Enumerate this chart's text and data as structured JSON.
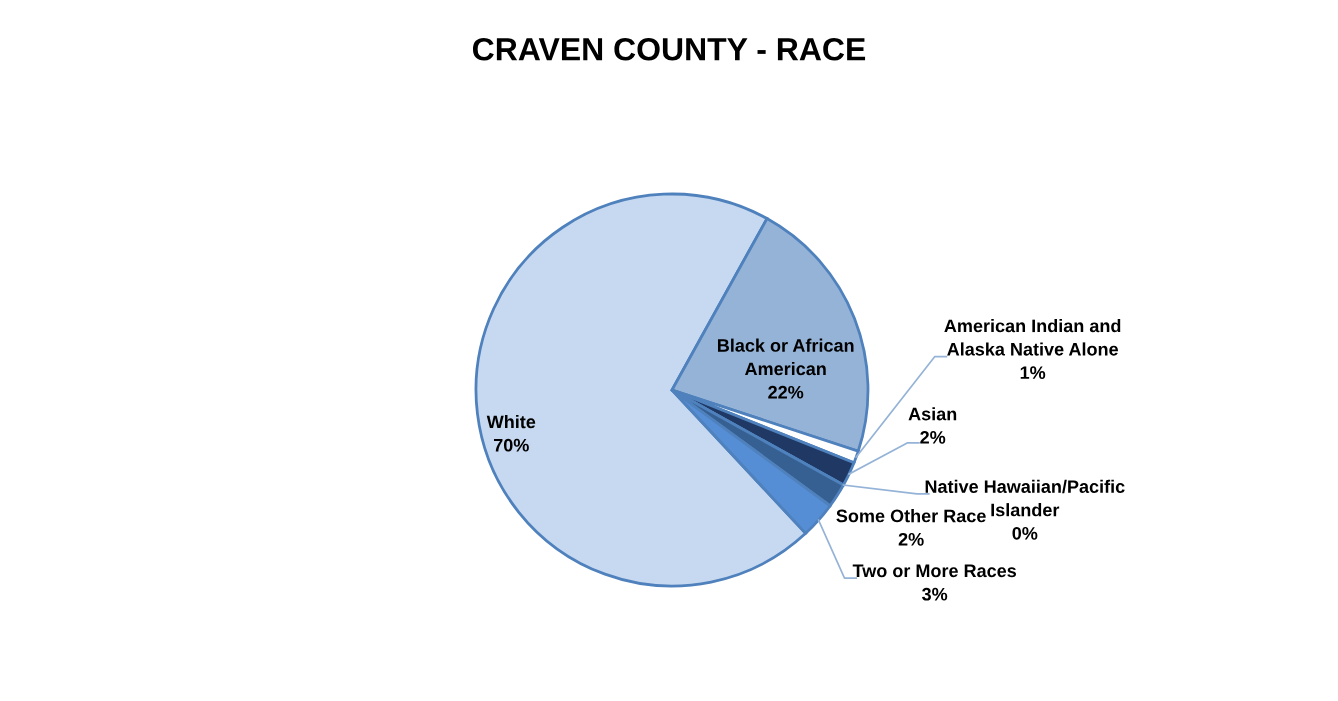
{
  "chart_data": {
    "type": "pie",
    "title": "CRAVEN COUNTY - RACE",
    "categories": [
      "White",
      "Black or African\nAmerican",
      "American Indian and\nAlaska Native Alone",
      "Asian",
      "Native Hawaiian/Pacific\nIslander",
      "Some Other Race",
      "Two or More Races"
    ],
    "values": [
      70,
      22,
      1,
      2,
      0,
      2,
      3
    ],
    "colors": [
      "#c6d9f1",
      "#95b3d7",
      "#ffffff",
      "#1f3864",
      "#254061",
      "#366092",
      "#558ed5"
    ],
    "value_labels": [
      "70%",
      "22%",
      "1%",
      "2%",
      "0%",
      "2%",
      "3%"
    ],
    "legend": false
  }
}
